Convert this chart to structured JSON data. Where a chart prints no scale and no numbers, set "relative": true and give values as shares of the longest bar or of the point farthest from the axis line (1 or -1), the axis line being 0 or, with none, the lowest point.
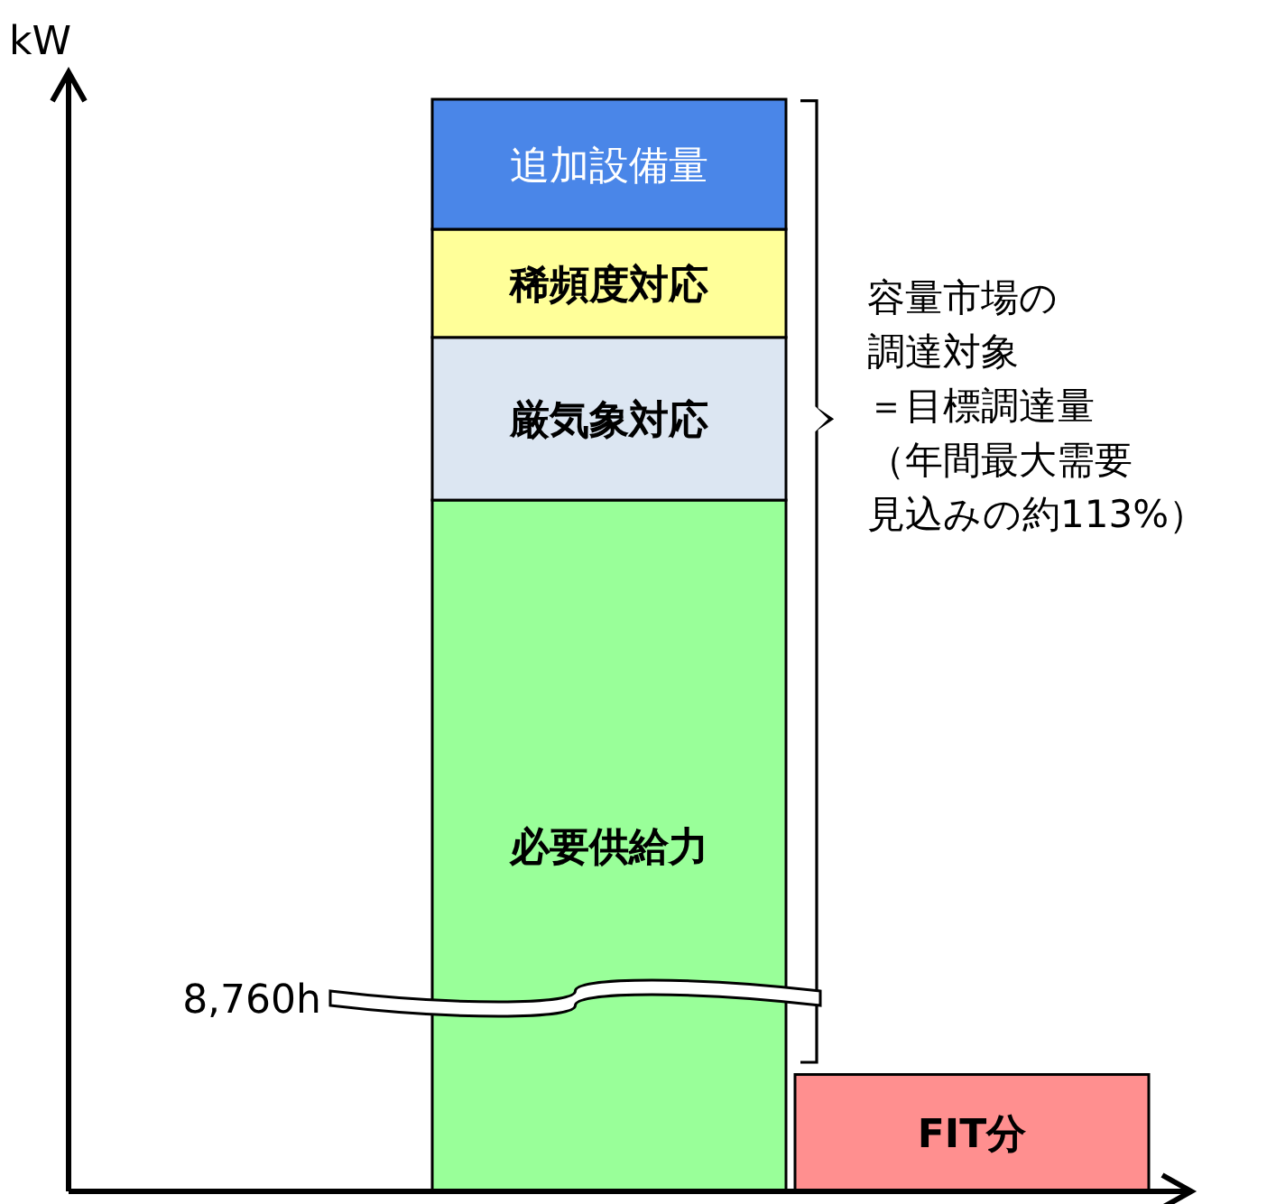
{
  "chart_data": {
    "type": "bar",
    "stacked": true,
    "relative": true,
    "categories": [
      null,
      null
    ],
    "legend": false,
    "series": [
      {
        "name": "必要供給力",
        "color": "#99ff99",
        "values": [
          0.633,
          null
        ]
      },
      {
        "name": "厳気象対応",
        "color": "#dce6f2",
        "values": [
          0.149,
          null
        ]
      },
      {
        "name": "稀頻度対応",
        "color": "#ffff99",
        "values": [
          0.099,
          null
        ]
      },
      {
        "name": "追加設備量",
        "color": "#4a86e8",
        "values": [
          0.119,
          null
        ]
      },
      {
        "name": "FIT分",
        "color": "#ff8f8f",
        "values": [
          null,
          0.107
        ]
      }
    ],
    "annotations": [
      "kW",
      "8,760h",
      "容量市場の",
      "調達対象",
      "＝目標調達量",
      "（年間最大需要",
      "見込みの約113%）"
    ]
  }
}
